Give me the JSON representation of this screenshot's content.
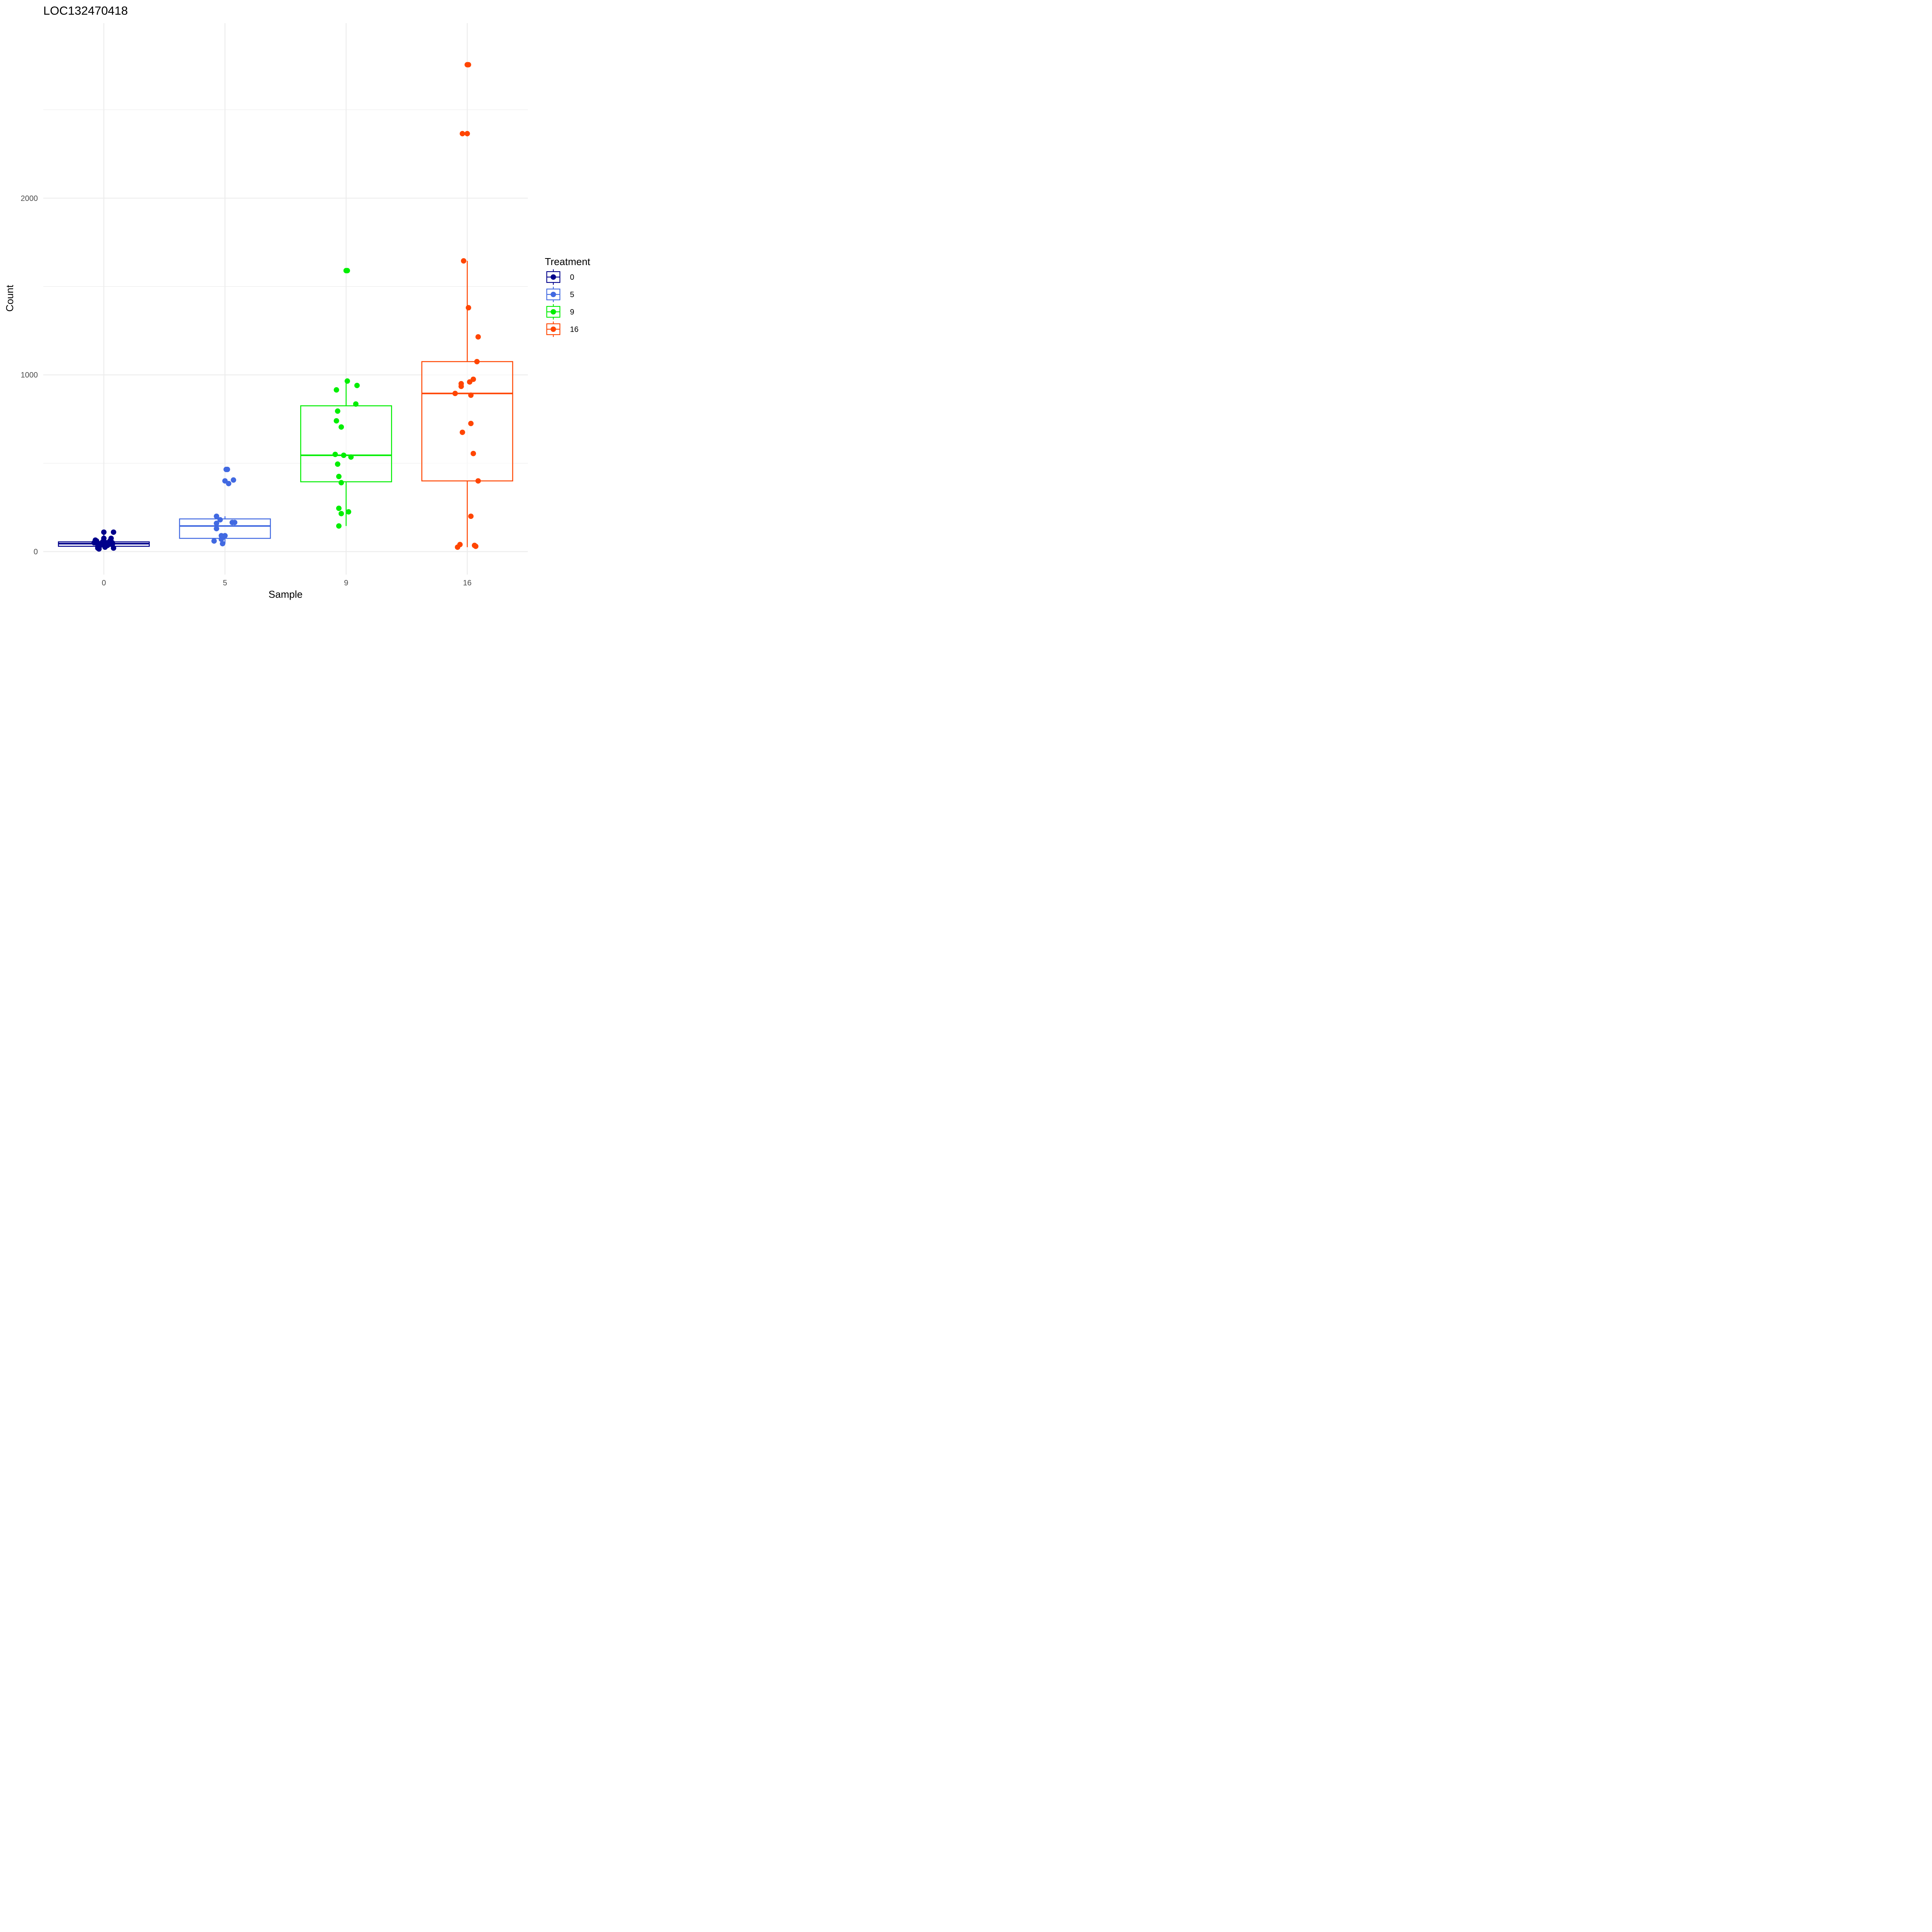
{
  "chart_data": {
    "type": "box",
    "title": "LOC132470418",
    "xlabel": "Sample",
    "ylabel": "Count",
    "categories": [
      "0",
      "5",
      "9",
      "16"
    ],
    "ylim": [
      -130,
      2990
    ],
    "yticks": [
      0,
      1000,
      2000
    ],
    "grid": true,
    "legend": {
      "title": "Treatment",
      "position": "right",
      "entries": [
        "0",
        "5",
        "9",
        "16"
      ]
    },
    "series": [
      {
        "name": "0",
        "color": "#00008B",
        "box": {
          "min": 15,
          "q1": 30,
          "median": 45,
          "q3": 55,
          "max": 110
        },
        "points": [
          {
            "dx": -0.08,
            "y": 50
          },
          {
            "dx": -0.07,
            "y": 65
          },
          {
            "dx": -0.06,
            "y": 60
          },
          {
            "dx": -0.05,
            "y": 30
          },
          {
            "dx": -0.05,
            "y": 20
          },
          {
            "dx": -0.04,
            "y": 45
          },
          {
            "dx": -0.04,
            "y": 15
          },
          {
            "dx": -0.03,
            "y": 35
          },
          {
            "dx": -0.02,
            "y": 40
          },
          {
            "dx": -0.01,
            "y": 55
          },
          {
            "dx": 0.0,
            "y": 110
          },
          {
            "dx": 0.0,
            "y": 75
          },
          {
            "dx": 0.01,
            "y": 40
          },
          {
            "dx": 0.01,
            "y": 25
          },
          {
            "dx": 0.02,
            "y": 50
          },
          {
            "dx": 0.03,
            "y": 35
          },
          {
            "dx": 0.04,
            "y": 45
          },
          {
            "dx": 0.05,
            "y": 60
          },
          {
            "dx": 0.06,
            "y": 75
          },
          {
            "dx": 0.07,
            "y": 50
          },
          {
            "dx": 0.07,
            "y": 40
          },
          {
            "dx": 0.08,
            "y": 110
          },
          {
            "dx": 0.08,
            "y": 20
          }
        ]
      },
      {
        "name": "5",
        "color": "#4169E1",
        "box": {
          "min": 45,
          "q1": 75,
          "median": 145,
          "q3": 185,
          "max": 200
        },
        "points": [
          {
            "dx": -0.09,
            "y": 60
          },
          {
            "dx": -0.07,
            "y": 160
          },
          {
            "dx": -0.07,
            "y": 130
          },
          {
            "dx": -0.07,
            "y": 200
          },
          {
            "dx": -0.04,
            "y": 180
          },
          {
            "dx": -0.03,
            "y": 70
          },
          {
            "dx": -0.03,
            "y": 90
          },
          {
            "dx": -0.02,
            "y": 45
          },
          {
            "dx": -0.02,
            "y": 80
          },
          {
            "dx": -0.01,
            "y": 85
          },
          {
            "dx": 0.0,
            "y": 90
          },
          {
            "dx": 0.0,
            "y": 400
          },
          {
            "dx": 0.01,
            "y": 465
          },
          {
            "dx": 0.02,
            "y": 465
          },
          {
            "dx": 0.03,
            "y": 385
          },
          {
            "dx": 0.06,
            "y": 165
          },
          {
            "dx": 0.08,
            "y": 165
          },
          {
            "dx": 0.07,
            "y": 405
          }
        ]
      },
      {
        "name": "9",
        "color": "#00EE00",
        "box": {
          "min": 145,
          "q1": 395,
          "median": 545,
          "q3": 825,
          "max": 970
        },
        "points": [
          {
            "dx": -0.09,
            "y": 550
          },
          {
            "dx": -0.08,
            "y": 915
          },
          {
            "dx": -0.08,
            "y": 740
          },
          {
            "dx": -0.07,
            "y": 795
          },
          {
            "dx": -0.07,
            "y": 495
          },
          {
            "dx": -0.06,
            "y": 425
          },
          {
            "dx": -0.06,
            "y": 245
          },
          {
            "dx": -0.06,
            "y": 145
          },
          {
            "dx": -0.04,
            "y": 390
          },
          {
            "dx": -0.04,
            "y": 705
          },
          {
            "dx": -0.04,
            "y": 215
          },
          {
            "dx": -0.02,
            "y": 545
          },
          {
            "dx": 0.0,
            "y": 1590
          },
          {
            "dx": 0.01,
            "y": 1590
          },
          {
            "dx": 0.01,
            "y": 965
          },
          {
            "dx": 0.02,
            "y": 225
          },
          {
            "dx": 0.04,
            "y": 535
          },
          {
            "dx": 0.08,
            "y": 835
          },
          {
            "dx": 0.09,
            "y": 940
          }
        ]
      },
      {
        "name": "16",
        "color": "#FF4500",
        "box": {
          "min": 25,
          "q1": 400,
          "median": 895,
          "q3": 1075,
          "max": 1645
        },
        "points": [
          {
            "dx": -0.08,
            "y": 25
          },
          {
            "dx": -0.06,
            "y": 40
          },
          {
            "dx": -0.05,
            "y": 950
          },
          {
            "dx": -0.05,
            "y": 935
          },
          {
            "dx": -0.04,
            "y": 2365
          },
          {
            "dx": -0.04,
            "y": 675
          },
          {
            "dx": -0.03,
            "y": 1645
          },
          {
            "dx": 0.0,
            "y": 2365
          },
          {
            "dx": 0.0,
            "y": 2755
          },
          {
            "dx": 0.01,
            "y": 1380
          },
          {
            "dx": 0.01,
            "y": 2755
          },
          {
            "dx": 0.02,
            "y": 960
          },
          {
            "dx": 0.03,
            "y": 885
          },
          {
            "dx": 0.03,
            "y": 725
          },
          {
            "dx": 0.03,
            "y": 200
          },
          {
            "dx": 0.05,
            "y": 555
          },
          {
            "dx": 0.05,
            "y": 975
          },
          {
            "dx": 0.06,
            "y": 35
          },
          {
            "dx": 0.07,
            "y": 30
          },
          {
            "dx": 0.08,
            "y": 1075
          },
          {
            "dx": -0.1,
            "y": 895
          },
          {
            "dx": 0.09,
            "y": 1215
          },
          {
            "dx": 0.09,
            "y": 400
          }
        ]
      }
    ]
  }
}
